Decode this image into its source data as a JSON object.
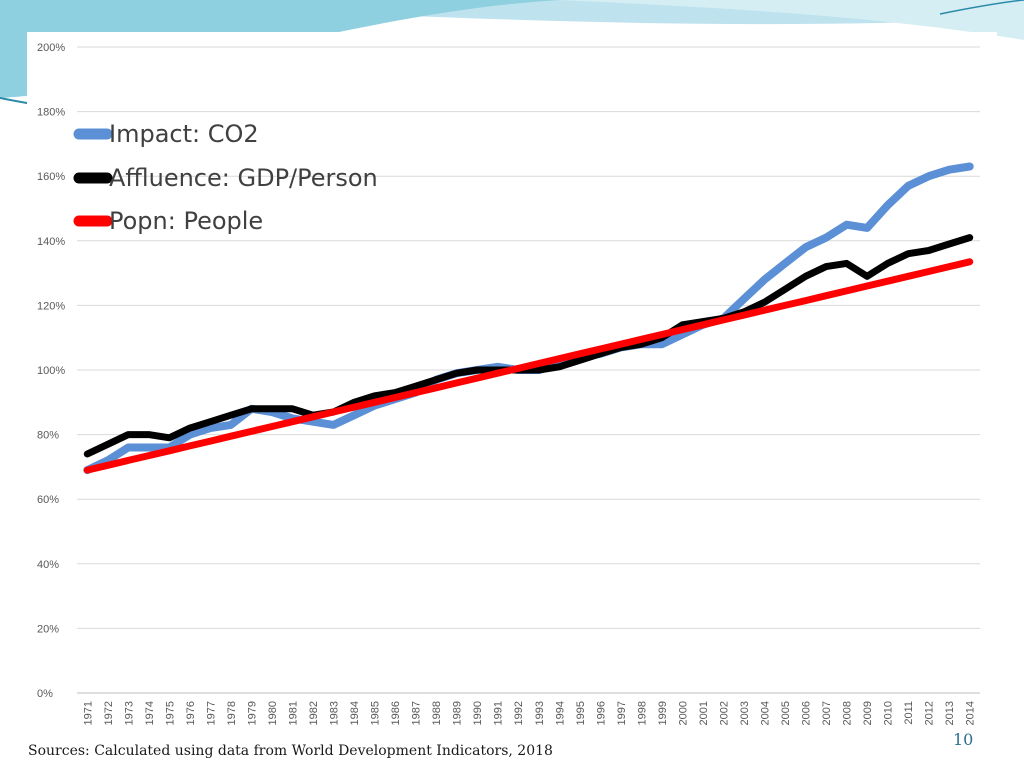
{
  "slide": {
    "source_note": "Sources: Calculated using data from  World Development Indicators, 2018",
    "page_number": "10",
    "theme_colors": {
      "teal_light": "#bfe3ee",
      "teal": "#5fb7cf",
      "teal_dark": "#2a8aa8"
    }
  },
  "chart_data": {
    "type": "line",
    "title": "",
    "xlabel": "",
    "ylabel": "",
    "ylim": [
      0,
      200
    ],
    "yticks": [
      "0%",
      "20%",
      "40%",
      "60%",
      "80%",
      "100%",
      "120%",
      "140%",
      "160%",
      "180%",
      "200%"
    ],
    "ytick_values": [
      0,
      20,
      40,
      60,
      80,
      100,
      120,
      140,
      160,
      180,
      200
    ],
    "grid": true,
    "legend_position": "top-left",
    "categories": [
      "1971",
      "1972",
      "1973",
      "1974",
      "1975",
      "1976",
      "1977",
      "1978",
      "1979",
      "1980",
      "1981",
      "1982",
      "1983",
      "1984",
      "1985",
      "1986",
      "1987",
      "1988",
      "1989",
      "1990",
      "1991",
      "1992",
      "1993",
      "1994",
      "1995",
      "1996",
      "1997",
      "1998",
      "1999",
      "2000",
      "2001",
      "2002",
      "2003",
      "2004",
      "2005",
      "2006",
      "2007",
      "2008",
      "2009",
      "2010",
      "2011",
      "2012",
      "2013",
      "2014"
    ],
    "series": [
      {
        "name": "Impact: CO2",
        "color": "#5b8fd6",
        "values": [
          69,
          72,
          76,
          76,
          76,
          80,
          82,
          83,
          88,
          87,
          85,
          84,
          83,
          86,
          89,
          91,
          93,
          97,
          99,
          100,
          101,
          100,
          100,
          102,
          104,
          105,
          107,
          108,
          108,
          111,
          114,
          116,
          122,
          128,
          133,
          138,
          141,
          145,
          144,
          151,
          157,
          160,
          162,
          163
        ]
      },
      {
        "name": "Affluence: GDP/Person",
        "color": "#000000",
        "values": [
          74,
          77,
          80,
          80,
          79,
          82,
          84,
          86,
          88,
          88,
          88,
          86,
          87,
          90,
          92,
          93,
          95,
          97,
          99,
          100,
          100,
          100,
          100,
          101,
          103,
          105,
          107,
          108,
          110,
          114,
          115,
          116,
          118,
          121,
          125,
          129,
          132,
          133,
          129,
          133,
          136,
          137,
          139,
          141
        ]
      },
      {
        "name": "Popn: People",
        "color": "#ff0000",
        "values": [
          69,
          70.5,
          72,
          73.5,
          75,
          76.5,
          78,
          79.5,
          81,
          82.5,
          84,
          85.5,
          87,
          88.5,
          90,
          91.5,
          93,
          94.5,
          96,
          97.5,
          99,
          100.5,
          102,
          103.5,
          105,
          106.5,
          108,
          109.5,
          111,
          112.5,
          114,
          115.5,
          117,
          118.5,
          120,
          121.5,
          123,
          124.5,
          126,
          127.5,
          129,
          130.5,
          132,
          133.5
        ]
      }
    ]
  }
}
